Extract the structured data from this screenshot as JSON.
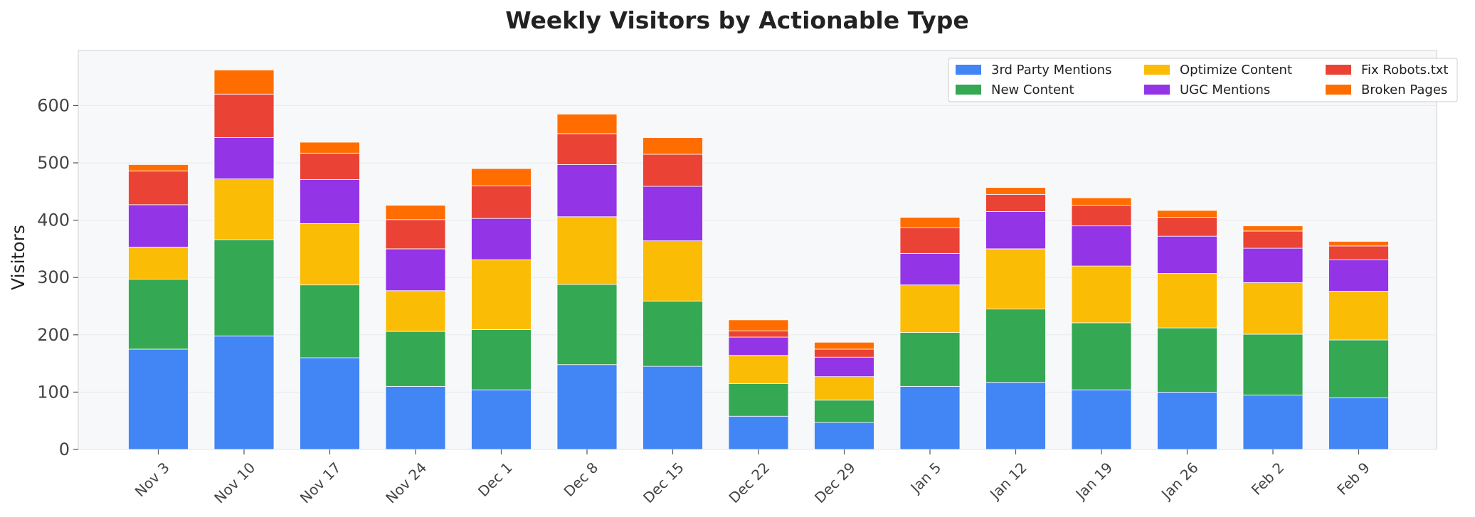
{
  "chart_data": {
    "type": "bar",
    "stacked": true,
    "title": "Weekly Visitors by Actionable Type",
    "xlabel": "",
    "ylabel": "Visitors",
    "ylim": [
      0,
      700
    ],
    "yticks": [
      0,
      100,
      200,
      300,
      400,
      500,
      600
    ],
    "grid": true,
    "legend_position": "top-right",
    "categories": [
      "Nov 3",
      "Nov 10",
      "Nov 17",
      "Nov 24",
      "Dec 1",
      "Dec 8",
      "Dec 15",
      "Dec 22",
      "Dec 29",
      "Jan 5",
      "Jan 12",
      "Jan 19",
      "Jan 26",
      "Feb 2",
      "Feb 9"
    ],
    "series": [
      {
        "name": "3rd Party Mentions",
        "color": "#4285F4",
        "values": [
          175,
          198,
          160,
          110,
          104,
          148,
          145,
          58,
          47,
          110,
          117,
          104,
          100,
          95,
          90
        ]
      },
      {
        "name": "New Content",
        "color": "#34A853",
        "values": [
          122,
          168,
          127,
          96,
          105,
          140,
          114,
          57,
          39,
          94,
          128,
          117,
          112,
          106,
          101
        ]
      },
      {
        "name": "Optimize Content",
        "color": "#FBBC05",
        "values": [
          56,
          106,
          107,
          71,
          122,
          118,
          105,
          49,
          41,
          83,
          105,
          99,
          95,
          90,
          85
        ]
      },
      {
        "name": "UGC Mentions",
        "color": "#9334E6",
        "values": [
          74,
          72,
          77,
          73,
          72,
          91,
          95,
          32,
          34,
          55,
          65,
          70,
          65,
          60,
          55
        ]
      },
      {
        "name": "Fix Robots.txt",
        "color": "#EA4335",
        "values": [
          59,
          76,
          46,
          51,
          57,
          54,
          56,
          11,
          14,
          45,
          30,
          36,
          33,
          30,
          24
        ]
      },
      {
        "name": "Broken Pages",
        "color": "#FF6D01",
        "values": [
          11,
          42,
          19,
          25,
          30,
          34,
          29,
          19,
          12,
          18,
          12,
          13,
          12,
          9,
          8
        ]
      }
    ]
  }
}
